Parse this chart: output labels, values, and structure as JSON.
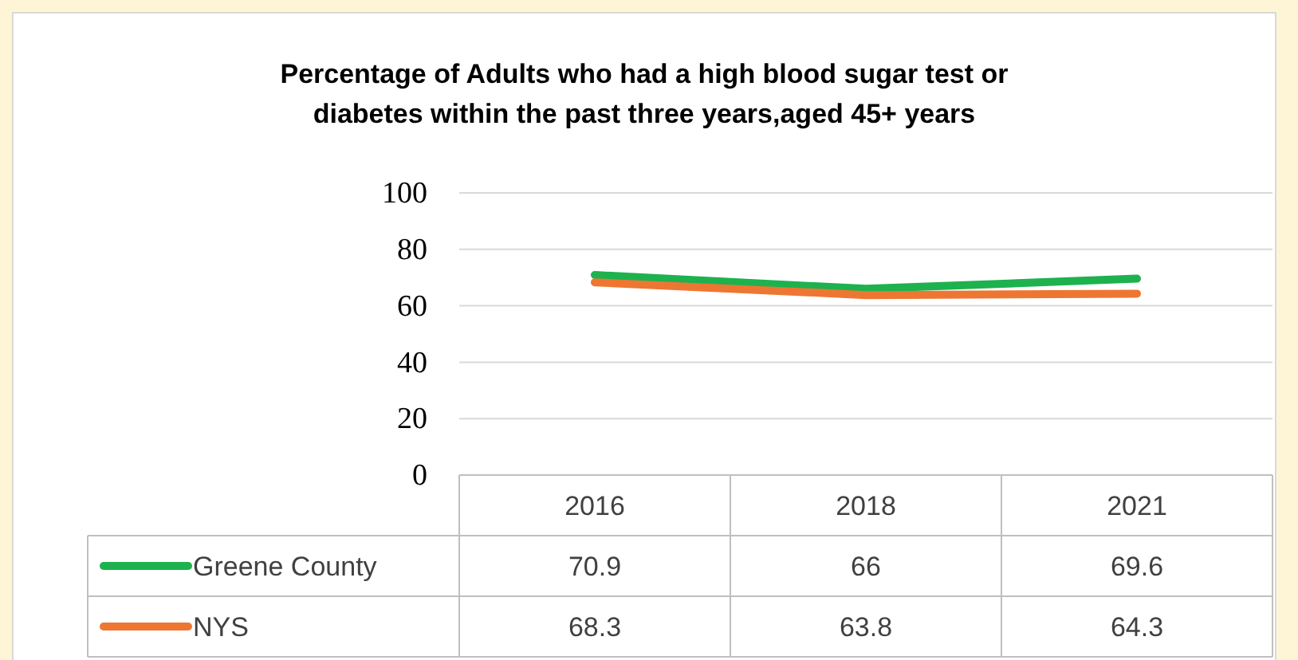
{
  "chart_data": {
    "type": "line",
    "title": "Percentage of Adults who had a high blood sugar test or diabetes within the past three years,aged 45+ years",
    "categories": [
      "2016",
      "2018",
      "2021"
    ],
    "series": [
      {
        "name": "Greene County",
        "color": "#1db24e",
        "values": [
          70.9,
          66,
          69.6
        ]
      },
      {
        "name": "NYS",
        "color": "#ee7633",
        "values": [
          68.3,
          63.8,
          64.3
        ]
      }
    ],
    "ylim": [
      0,
      100
    ],
    "yticks": [
      0,
      20,
      40,
      60,
      80,
      100
    ],
    "grid": "y",
    "legend": "bottom left",
    "data_labels": true,
    "marker": "none",
    "line_style": "solid"
  }
}
